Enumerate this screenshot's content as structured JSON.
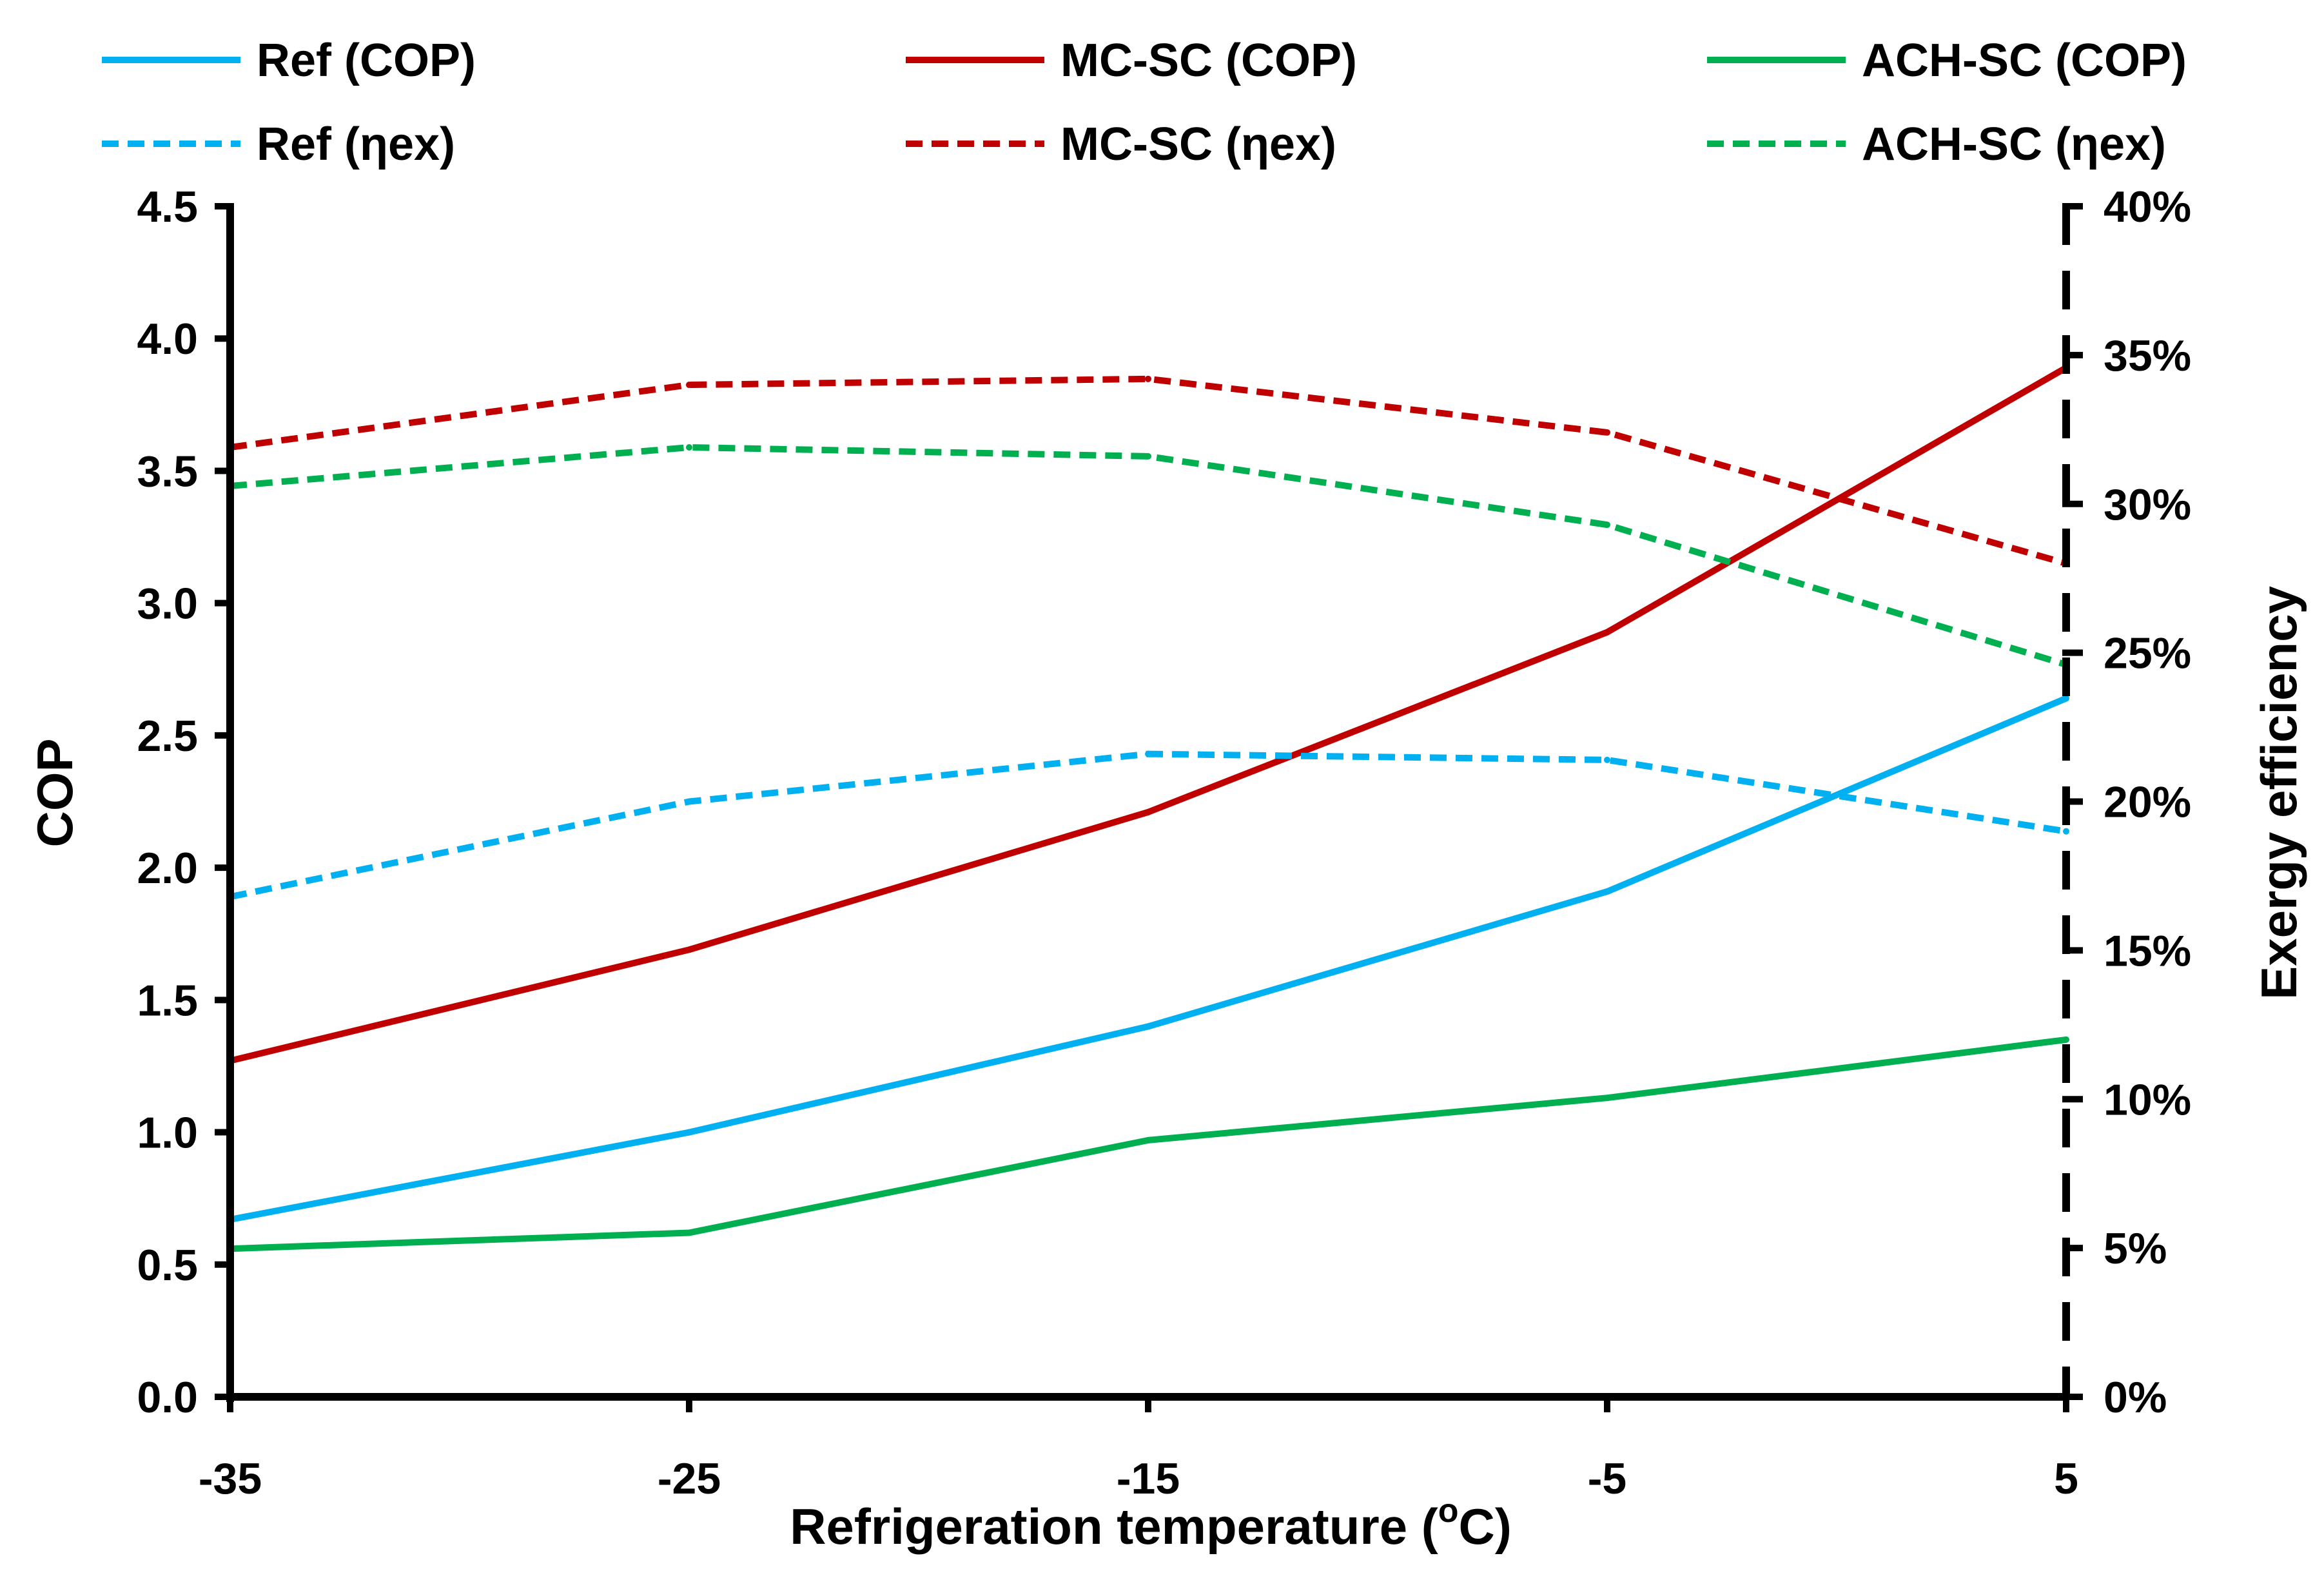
{
  "chart_data": {
    "type": "line",
    "xlabel": "Refrigeration temperature (",
    "xlabel_sup": "o",
    "xlabel_suffix": "C)",
    "ylabel": "COP",
    "y2label": "Exergy efficiency",
    "xlim": [
      -35,
      5
    ],
    "ylim": [
      0,
      4.5
    ],
    "y2lim": [
      0,
      0.4
    ],
    "x": [
      -35,
      -25,
      -15,
      -5,
      5
    ],
    "x_ticks": [
      -35,
      -25,
      -15,
      -5,
      5
    ],
    "x_tick_labels": [
      "-35",
      "-25",
      "-15",
      "-5",
      "5"
    ],
    "y_ticks": [
      0,
      0.5,
      1.0,
      1.5,
      2.0,
      2.5,
      3.0,
      3.5,
      4.0,
      4.5
    ],
    "y_tick_labels": [
      "0.0",
      "0.5",
      "1.0",
      "1.5",
      "2.0",
      "2.5",
      "3.0",
      "3.5",
      "4.0",
      "4.5"
    ],
    "y2_ticks": [
      0,
      0.05,
      0.1,
      0.15,
      0.2,
      0.25,
      0.3,
      0.35,
      0.4
    ],
    "y2_tick_labels": [
      "0%",
      "5%",
      "10%",
      "15%",
      "20%",
      "25%",
      "30%",
      "35%",
      "40%"
    ],
    "grid": false,
    "legend_position": "top",
    "series": [
      {
        "name": "Ref (COP)",
        "axis": "left",
        "style": "solid",
        "color": "#00B0F0",
        "values": [
          0.67,
          1.0,
          1.4,
          1.91,
          2.64
        ]
      },
      {
        "name": "MC-SC (COP)",
        "axis": "left",
        "style": "solid",
        "color": "#C00000",
        "values": [
          1.27,
          1.69,
          2.21,
          2.89,
          3.89
        ]
      },
      {
        "name": "ACH-SC (COP)",
        "axis": "left",
        "style": "solid",
        "color": "#00B050",
        "values": [
          0.56,
          0.62,
          0.97,
          1.13,
          1.35
        ]
      },
      {
        "name": "Ref (ηex)",
        "axis": "right",
        "style": "dashed",
        "color": "#00B0F0",
        "values": [
          0.168,
          0.2,
          0.216,
          0.214,
          0.19
        ]
      },
      {
        "name": "MC-SC (ηex)",
        "axis": "right",
        "style": "dashed",
        "color": "#C00000",
        "values": [
          0.319,
          0.34,
          0.342,
          0.324,
          0.28
        ]
      },
      {
        "name": "ACH-SC (ηex)",
        "axis": "right",
        "style": "dashed",
        "color": "#00B050",
        "values": [
          0.306,
          0.319,
          0.316,
          0.293,
          0.246
        ]
      }
    ]
  }
}
